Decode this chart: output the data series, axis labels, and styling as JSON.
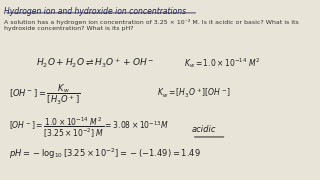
{
  "background_color": "#e8e4d8",
  "title": "Hydrogen ion and hydroxide ion concentrations",
  "problem_text": "A solution has a hydrogen ion concentration of 3.25 × 10⁻² M. Is it acidic or basic? What is its\nhydroxide concentration? What is its pH?",
  "acidic": "acidic",
  "title_color": "#222255",
  "text_color": "#333333",
  "eq_color": "#222222"
}
